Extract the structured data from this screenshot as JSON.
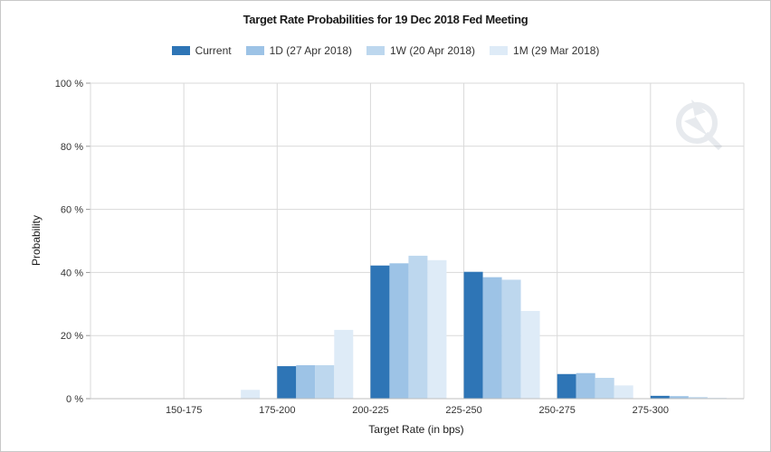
{
  "chart_data": {
    "type": "bar",
    "title": "Target Rate Probabilities for 19 Dec 2018 Fed Meeting",
    "xlabel": "Target Rate (in bps)",
    "ylabel": "Probability",
    "ylim": [
      0,
      100
    ],
    "yticks": [
      "0 %",
      "20 %",
      "40 %",
      "60 %",
      "80 %",
      "100 %"
    ],
    "categories": [
      "150-175",
      "175-200",
      "200-225",
      "225-250",
      "250-275",
      "275-300"
    ],
    "grid": true,
    "legend_position": "top-center",
    "series": [
      {
        "name": "Current",
        "color": "#2e75b6",
        "values": [
          0.0,
          10.3,
          42.2,
          40.2,
          7.8,
          0.9
        ]
      },
      {
        "name": "1D (27 Apr 2018)",
        "color": "#9dc3e6",
        "values": [
          0.0,
          10.6,
          42.9,
          38.5,
          8.1,
          0.8
        ]
      },
      {
        "name": "1W (20 Apr 2018)",
        "color": "#bdd7ee",
        "values": [
          0.0,
          10.6,
          45.3,
          37.7,
          6.6,
          0.5
        ]
      },
      {
        "name": "1M (29 Mar 2018)",
        "color": "#deebf7",
        "values": [
          2.8,
          21.8,
          43.9,
          27.8,
          4.2,
          0.3
        ]
      }
    ]
  }
}
